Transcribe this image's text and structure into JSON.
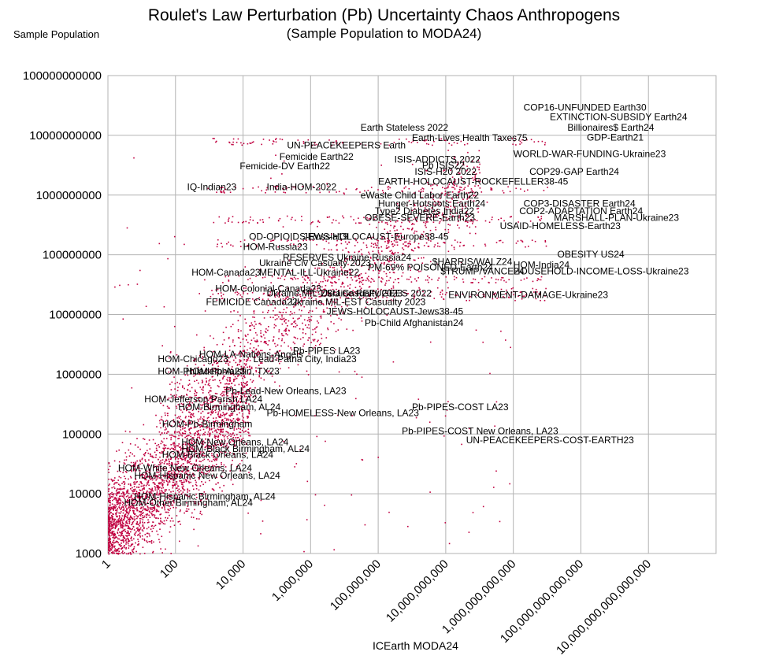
{
  "chart_data": {
    "type": "scatter",
    "title": "Roulet's Law Perturbation (Pb) Uncertainty Chaos Anthropogens",
    "subtitle": "(Sample Population to MODA24)",
    "xlabel": "ICEarth MODA24",
    "ylabel": "Sample Population",
    "x_scale": "log",
    "y_scale": "log",
    "xlim": [
      1,
      1e+18
    ],
    "ylim": [
      1000,
      100000000000
    ],
    "grid": true,
    "legend": "none",
    "marker_color": "#c00040",
    "y_ticks": [
      {
        "value": 1000,
        "label": "1000"
      },
      {
        "value": 10000,
        "label": "10000"
      },
      {
        "value": 100000,
        "label": "100000"
      },
      {
        "value": 1000000,
        "label": "1000000"
      },
      {
        "value": 10000000,
        "label": "10000000"
      },
      {
        "value": 100000000,
        "label": "100000000"
      },
      {
        "value": 1000000000,
        "label": "1000000000"
      },
      {
        "value": 10000000000,
        "label": "10000000000"
      },
      {
        "value": 100000000000,
        "label": "100000000000"
      }
    ],
    "x_ticks": [
      {
        "value": 1,
        "label": "1"
      },
      {
        "value": 100,
        "label": "100"
      },
      {
        "value": 10000,
        "label": "10,000"
      },
      {
        "value": 1000000,
        "label": "1,000,000"
      },
      {
        "value": 100000000,
        "label": "100,000,000"
      },
      {
        "value": 10000000000,
        "label": "10,000,000,000"
      },
      {
        "value": 1000000000000,
        "label": "1,000,000,000,000"
      },
      {
        "value": 100000000000000,
        "label": "100,000,000,000,000"
      },
      {
        "value": 10000000000000000,
        "label": "10,000,000,000,000,000"
      }
    ],
    "annotations": [
      {
        "text": "COP16-UNFUNDED Earth30",
        "x": 2000000000000.0,
        "y": 26000000000.0
      },
      {
        "text": "EXTINCTION-SUBSIDY Earth24",
        "x": 12000000000000.0,
        "y": 18000000000.0
      },
      {
        "text": "Billionaires$ Earth24",
        "x": 40000000000000.0,
        "y": 12000000000.0
      },
      {
        "text": "GDP-Earth21",
        "x": 150000000000000.0,
        "y": 8200000000.0
      },
      {
        "text": "Earth Stateless 2022",
        "x": 30000000.0,
        "y": 12000000000.0
      },
      {
        "text": "Earth-Lives Health Taxes75",
        "x": 1000000000.0,
        "y": 8000000000.0
      },
      {
        "text": "WORLD-WAR-FUNDING-Ukraine23",
        "x": 1000000000000.0,
        "y": 4300000000.0
      },
      {
        "text": "UN-PEACEKEEPERS Earth",
        "x": 200000.0,
        "y": 6000000000.0
      },
      {
        "text": "Femicide Earth22",
        "x": 120000.0,
        "y": 3900000000.0
      },
      {
        "text": "Femicide-DV Earth22",
        "x": 8000.0,
        "y": 2700000000.0
      },
      {
        "text": "ISIS-ADDICTS 2022",
        "x": 300000000.0,
        "y": 3500000000.0
      },
      {
        "text": "Pb ISIS22",
        "x": 2000000000.0,
        "y": 2800000000.0
      },
      {
        "text": "ISIS-H20 2022",
        "x": 1200000000.0,
        "y": 2200000000.0
      },
      {
        "text": "COP29-GAP Earth24",
        "x": 3000000000000.0,
        "y": 2200000000.0
      },
      {
        "text": "EARTH-HOLOCAUST-ROCKEFELLER38-45",
        "x": 100000000.0,
        "y": 1500000000.0
      },
      {
        "text": "IQ-Indian23",
        "x": 220.0,
        "y": 1200000000.0
      },
      {
        "text": "India-HOM-2022",
        "x": 50000.0,
        "y": 1200000000.0
      },
      {
        "text": "eWaste Child Labor Earth22",
        "x": 30000000.0,
        "y": 880000000.0
      },
      {
        "text": "COP3-DISASTER Earth24",
        "x": 2000000000000.0,
        "y": 640000000.0
      },
      {
        "text": "Hunger-Hotspots Earth24",
        "x": 100000000.0,
        "y": 640000000.0
      },
      {
        "text": "COP2-ADAPTATION Earth24",
        "x": 1500000000000.0,
        "y": 480000000.0
      },
      {
        "text": "Type2 Diabetes India22",
        "x": 80000000.0,
        "y": 480000000.0
      },
      {
        "text": "OBESE-SEVERE-Earth23",
        "x": 40000000.0,
        "y": 370000000.0
      },
      {
        "text": "MARSHALL-PLAN-Ukraine23",
        "x": 16000000000000.0,
        "y": 370000000.0
      },
      {
        "text": "USAID-HOMELESS-Earth23",
        "x": 400000000000.0,
        "y": 270000000.0
      },
      {
        "text": "OD-OPIOIDS-Russia19",
        "x": 15000.0,
        "y": 180000000.0
      },
      {
        "text": "JEWS-HOLOCAUST-Europe38-45",
        "x": 600000.0,
        "y": 180000000.0
      },
      {
        "text": "HOM-Russia23",
        "x": 10000.0,
        "y": 120000000.0
      },
      {
        "text": "RESERVES Ukraine Russia24",
        "x": 150000.0,
        "y": 80000000.0
      },
      {
        "text": "OBESITY US24",
        "x": 20000000000000.0,
        "y": 90000000.0
      },
      {
        "text": "Ukraine Civ Casualty 2023",
        "x": 30000.0,
        "y": 65000000.0
      },
      {
        "text": "PM-69% POISONED-Earth24",
        "x": 50000000.0,
        "y": 55000000.0
      },
      {
        "text": "$HARRIS/WALZ24",
        "x": 4000000000.0,
        "y": 68000000.0
      },
      {
        "text": "HOM-India24",
        "x": 1000000000000.0,
        "y": 60000000.0
      },
      {
        "text": "$TRUMP/VANCE24",
        "x": 7000000000.0,
        "y": 47000000.0
      },
      {
        "text": "HOUSEHOLD-INCOME-LOSS-Ukraine23",
        "x": 1000000000000.0,
        "y": 47000000.0
      },
      {
        "text": "HOM-Canada23",
        "x": 300.0,
        "y": 45000000.0
      },
      {
        "text": "MENTAL-ILL-Ukraine22",
        "x": 30000.0,
        "y": 45000000.0
      },
      {
        "text": "HOM-Colonial-Canada23",
        "x": 1500.0,
        "y": 24000000.0
      },
      {
        "text": "Ukraine MIL-ZSU Casualty 2023",
        "x": 50000.0,
        "y": 20000000.0
      },
      {
        "text": "Ukraine REFUGEES 2022",
        "x": 2000000.0,
        "y": 20000000.0
      },
      {
        "text": "ENVIRONMENT-DAMAGE-Ukraine23",
        "x": 12000000000.0,
        "y": 19000000.0
      },
      {
        "text": "FEMICIDE Canada22",
        "x": 800.0,
        "y": 14500000.0
      },
      {
        "text": "Ukraine MIL-EST Casualty 2023",
        "x": 250000.0,
        "y": 14500000.0
      },
      {
        "text": "JEWS-HOLOCAUST-Jews38-45",
        "x": 3000000.0,
        "y": 10000000.0
      },
      {
        "text": "Pb-Child Afghanistan24",
        "x": 40000000.0,
        "y": 6400000.0
      },
      {
        "text": "Pb-PIPES LA23",
        "x": 300000.0,
        "y": 2200000.0
      },
      {
        "text": "HOM-LA-Nations-Angels",
        "x": 500.0,
        "y": 1900000.0
      },
      {
        "text": "Lead-Patna City, India23",
        "x": 20000.0,
        "y": 1600000.0
      },
      {
        "text": "HOM-Chicago23",
        "x": 30.0,
        "y": 1600000.0
      },
      {
        "text": "HOM-Philadelphia23",
        "x": 30.0,
        "y": 1000000.0
      },
      {
        "text": "HOM-Pb-Austin, TX23",
        "x": 200.0,
        "y": 1000000.0
      },
      {
        "text": "Pb-Lead-New Orleans, LA23",
        "x": 3000.0,
        "y": 470000.0
      },
      {
        "text": "Pb-PIPES-COST LA23",
        "x": 1000000000.0,
        "y": 250000.0
      },
      {
        "text": "HOM-Jefferson Parish LA24",
        "x": 12.0,
        "y": 340000.0
      },
      {
        "text": "HOM-Birmingham, AL24",
        "x": 120.0,
        "y": 250000.0
      },
      {
        "text": "Pb-HOMELESS-New Orleans, LA23",
        "x": 50000.0,
        "y": 200000.0
      },
      {
        "text": "HOM-Pb-Birmingham",
        "x": 40.0,
        "y": 130000.0
      },
      {
        "text": "Pb-PIPES-COST New Orleans, LA23",
        "x": 500000000.0,
        "y": 100000.0
      },
      {
        "text": "UN-PEACEKEEPERS-COST-EARTH23",
        "x": 40000000000.0,
        "y": 70000.0
      },
      {
        "text": "HOM-New Orleans, LA24",
        "x": 150.0,
        "y": 65000.0
      },
      {
        "text": "HOM-Black Birmingham, AL24",
        "x": 150.0,
        "y": 50000.0
      },
      {
        "text": "HOM-Black Orleans, LA24",
        "x": 40.0,
        "y": 40000.0
      },
      {
        "text": "HOM-White New Orleans, LA24",
        "x": 2.0,
        "y": 24000.0
      },
      {
        "text": "HOM-Hispanic New Orleans, LA24",
        "x": 6.0,
        "y": 18000.0
      },
      {
        "text": "HOM-Hispanic Birmingham, AL24",
        "x": 6.0,
        "y": 8000.0
      },
      {
        "text": "HOM-Other Birmingham, AL24",
        "x": 3.0,
        "y": 6300.0
      }
    ]
  }
}
